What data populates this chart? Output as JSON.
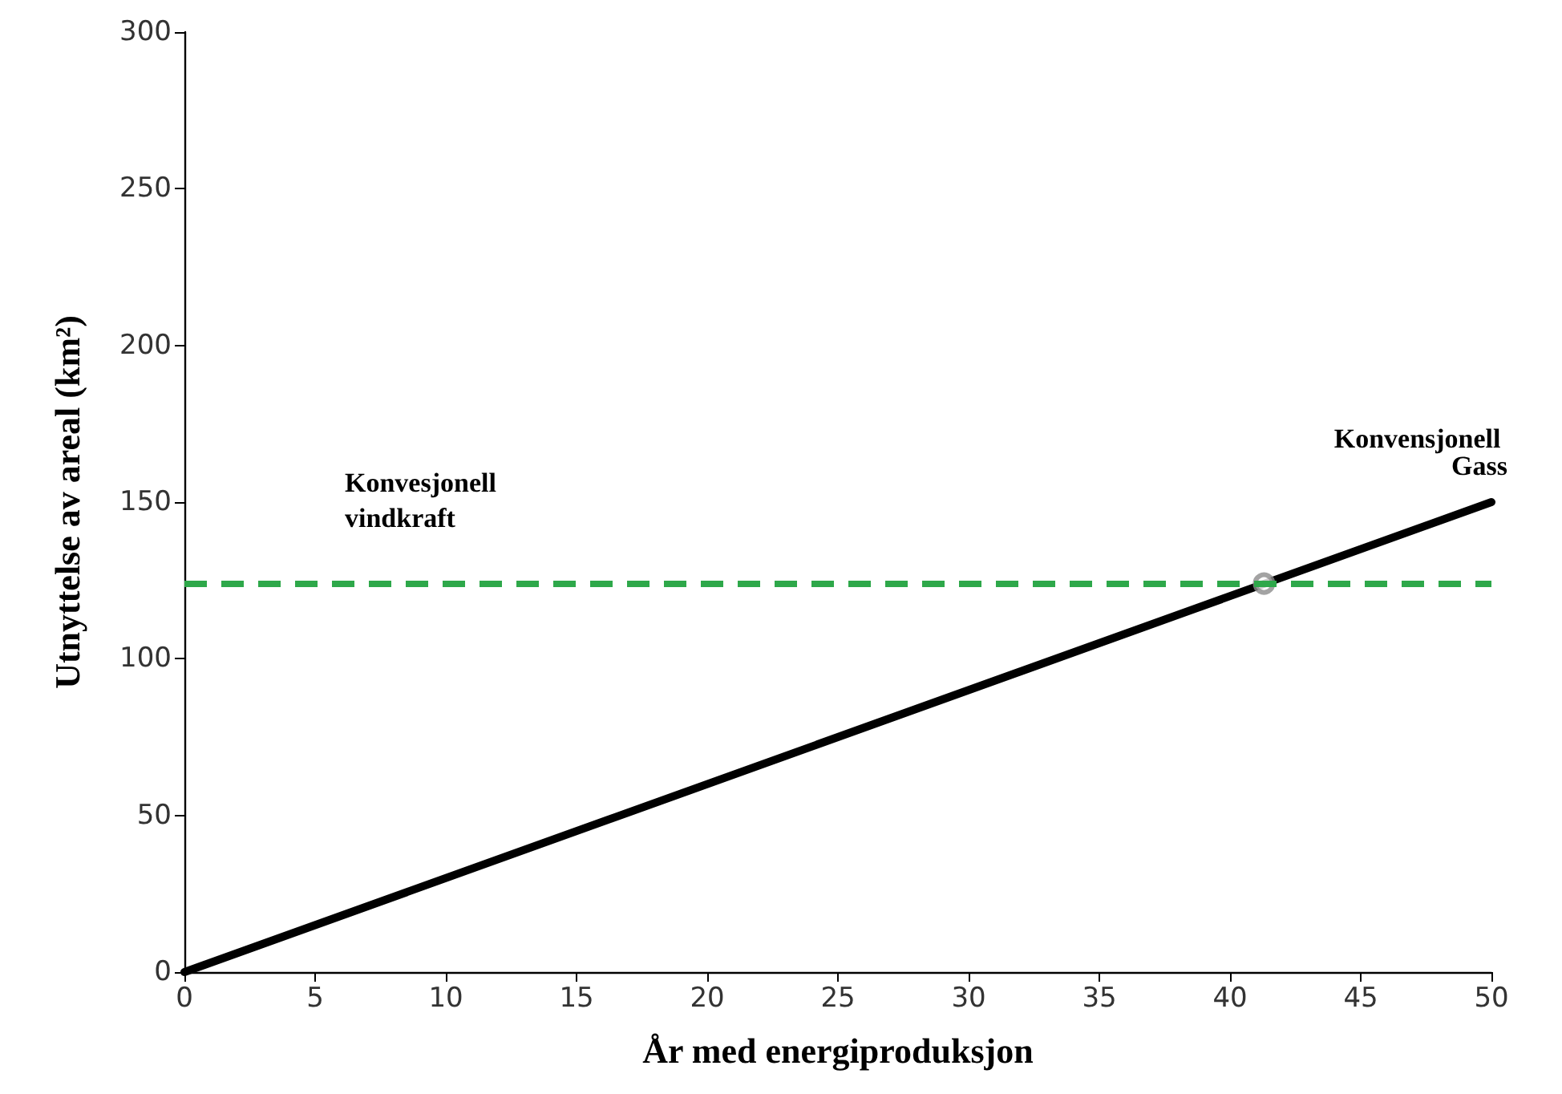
{
  "chart_data": {
    "type": "line",
    "xlabel": "År med energiproduksjon",
    "ylabel": "Utnyttelse av areal (km²)",
    "series": [
      {
        "name": "Konvensjonell Gass",
        "color": "#000000",
        "x": [
          0,
          50
        ],
        "values": [
          0,
          150
        ],
        "marker": "none",
        "line_style": "solid"
      },
      {
        "type": "scatter",
        "color": "#8c8c8c",
        "x": [
          41.3
        ],
        "values": [
          124
        ],
        "marker": "circle"
      }
    ],
    "ref_lines": [
      {
        "axis": "y",
        "value": 124,
        "label": "Konvesjonell vindkraft",
        "color": "#2ea84a",
        "line_style": "dashed"
      }
    ],
    "xlim": [
      0,
      50
    ],
    "xticks": [
      0,
      5,
      10,
      15,
      20,
      25,
      30,
      35,
      40,
      45,
      50
    ],
    "ylim": [
      0,
      300
    ],
    "yticks": [
      0,
      50,
      100,
      150,
      200,
      250,
      300
    ],
    "grid": false,
    "legend": false
  }
}
